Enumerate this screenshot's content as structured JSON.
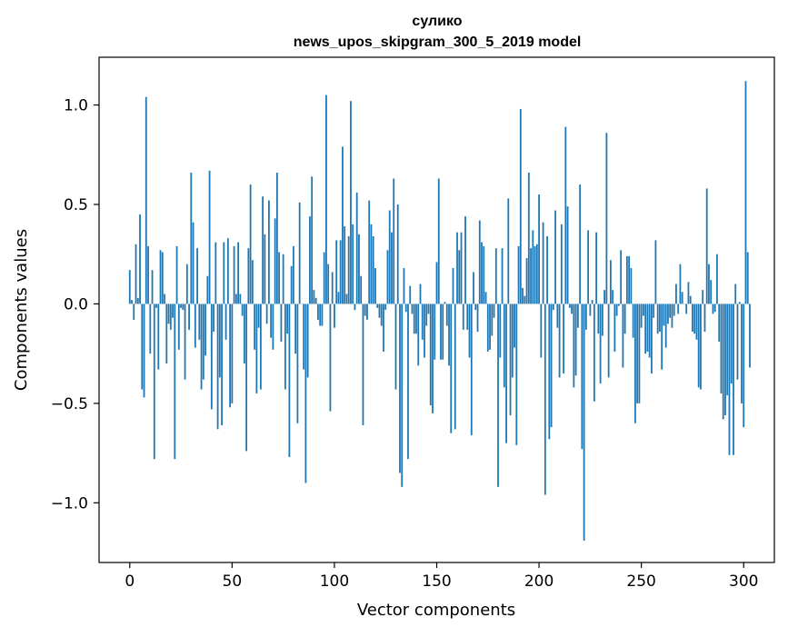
{
  "chart_data": {
    "type": "bar",
    "title_line1": "сулико",
    "title_line2": "news_upos_skipgram_300_5_2019 model",
    "xlabel": "Vector components",
    "ylabel": "Components values",
    "xlim": [
      -15,
      315
    ],
    "ylim": [
      -1.3,
      1.24
    ],
    "x_ticks": [
      0,
      50,
      100,
      150,
      200,
      250,
      300
    ],
    "x_tick_labels": [
      "0",
      "50",
      "100",
      "150",
      "200",
      "250",
      "300"
    ],
    "y_ticks": [
      1.0,
      0.5,
      0.0,
      -0.5,
      -1.0
    ],
    "y_tick_labels": [
      "1.0",
      "0.5",
      "0.0",
      "−0.5",
      "−1.0"
    ],
    "bar_color": "#1f77b4",
    "values": [
      0.17,
      0.02,
      -0.08,
      0.3,
      0.03,
      0.45,
      -0.43,
      -0.47,
      1.04,
      0.29,
      -0.25,
      0.17,
      -0.78,
      -0.02,
      -0.33,
      0.27,
      0.26,
      0.05,
      -0.3,
      -0.1,
      -0.13,
      -0.07,
      -0.78,
      0.29,
      -0.23,
      -0.02,
      -0.03,
      -0.38,
      0.2,
      -0.13,
      0.66,
      0.41,
      -0.22,
      0.28,
      -0.18,
      -0.43,
      -0.38,
      -0.26,
      0.14,
      0.67,
      -0.53,
      -0.14,
      0.31,
      -0.63,
      -0.37,
      -0.61,
      0.31,
      -0.18,
      0.33,
      -0.52,
      -0.5,
      0.29,
      0.05,
      0.31,
      0.05,
      -0.06,
      -0.3,
      -0.74,
      0.28,
      0.6,
      0.22,
      -0.23,
      -0.45,
      -0.12,
      -0.43,
      0.54,
      0.35,
      -0.1,
      0.52,
      -0.17,
      -0.23,
      0.43,
      0.66,
      0.26,
      -0.19,
      0.25,
      -0.43,
      -0.15,
      -0.77,
      0.19,
      0.29,
      -0.25,
      -0.6,
      0.51,
      0.0,
      -0.33,
      -0.9,
      -0.37,
      0.44,
      0.64,
      0.07,
      0.03,
      -0.08,
      -0.11,
      -0.11,
      0.26,
      1.05,
      0.2,
      -0.54,
      0.16,
      -0.12,
      0.32,
      0.06,
      0.32,
      0.79,
      0.39,
      0.05,
      0.34,
      1.02,
      0.4,
      -0.03,
      0.56,
      0.35,
      0.14,
      -0.61,
      -0.06,
      -0.08,
      0.52,
      0.4,
      0.34,
      0.18,
      -0.02,
      -0.07,
      -0.11,
      -0.24,
      -0.03,
      0.27,
      0.47,
      0.36,
      0.63,
      -0.43,
      0.5,
      -0.85,
      -0.92,
      0.18,
      -0.04,
      -0.78,
      0.09,
      -0.05,
      -0.15,
      -0.15,
      -0.31,
      0.1,
      -0.18,
      -0.27,
      -0.11,
      -0.05,
      -0.51,
      -0.55,
      -0.28,
      0.21,
      0.63,
      -0.28,
      -0.28,
      0.01,
      -0.11,
      -0.31,
      -0.65,
      0.18,
      -0.63,
      0.36,
      0.27,
      0.36,
      -0.13,
      0.44,
      -0.13,
      -0.27,
      -0.66,
      0.16,
      -0.03,
      -0.14,
      0.42,
      0.31,
      0.29,
      0.06,
      -0.24,
      -0.23,
      -0.16,
      -0.07,
      0.28,
      -0.92,
      -0.27,
      0.28,
      -0.42,
      -0.7,
      0.53,
      -0.56,
      -0.37,
      -0.22,
      -0.71,
      0.29,
      0.98,
      0.08,
      0.04,
      0.23,
      0.66,
      0.28,
      0.37,
      0.29,
      0.3,
      0.55,
      -0.27,
      0.41,
      -0.96,
      0.34,
      -0.68,
      -0.62,
      -0.03,
      0.47,
      -0.12,
      -0.37,
      0.4,
      -0.35,
      0.89,
      0.49,
      -0.02,
      -0.05,
      -0.42,
      -0.36,
      -0.12,
      0.6,
      -0.73,
      -1.19,
      -0.13,
      0.37,
      -0.06,
      0.02,
      -0.49,
      0.36,
      -0.15,
      -0.4,
      -0.16,
      0.07,
      0.86,
      -0.37,
      0.22,
      0.07,
      -0.24,
      -0.06,
      -0.01,
      0.27,
      -0.32,
      -0.15,
      0.24,
      0.24,
      0.18,
      -0.17,
      -0.6,
      -0.5,
      -0.5,
      -0.12,
      -0.06,
      -0.25,
      -0.24,
      -0.27,
      -0.35,
      -0.07,
      0.32,
      -0.15,
      -0.14,
      -0.33,
      -0.11,
      -0.22,
      -0.1,
      -0.07,
      -0.12,
      -0.06,
      0.1,
      -0.05,
      0.2,
      0.06,
      0.0,
      -0.05,
      0.11,
      0.04,
      -0.14,
      -0.15,
      -0.18,
      -0.42,
      -0.43,
      0.07,
      -0.14,
      0.58,
      0.2,
      0.12,
      -0.05,
      -0.04,
      0.25,
      -0.19,
      -0.45,
      -0.58,
      -0.56,
      -0.46,
      -0.76,
      -0.4,
      -0.76,
      0.1,
      -0.38,
      0.01,
      -0.5,
      -0.62,
      1.12,
      0.26,
      -0.32
    ]
  }
}
